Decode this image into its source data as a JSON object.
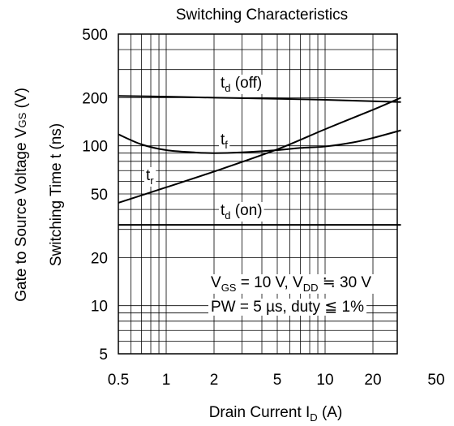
{
  "chart_data": {
    "type": "line",
    "title": "Switching Characteristics",
    "xlabel": {
      "main": "Drain Current I",
      "sub": "D",
      "unit": "(A)"
    },
    "ylabel_outer": {
      "main": "Gate to Source Voltage V",
      "sub": "GS",
      "unit": "(V)"
    },
    "ylabel_inner": "Switching Time t  (ns)",
    "x_scale": "log",
    "y_scale": "log",
    "xlim": [
      0.5,
      50
    ],
    "ylim": [
      5,
      500
    ],
    "x_ticks": [
      0.5,
      1,
      2,
      5,
      10,
      20,
      50
    ],
    "x_tick_labels": [
      "0.5",
      "1",
      "2",
      "5",
      "10",
      "20",
      "50"
    ],
    "y_ticks": [
      5,
      10,
      20,
      50,
      100,
      200,
      500
    ],
    "y_tick_labels": [
      "5",
      "10",
      "20",
      "50",
      "100",
      "200",
      "500"
    ],
    "grid": true,
    "series": [
      {
        "name": "td(off)",
        "label_main": "t",
        "label_sub": "d",
        "label_suffix": " (off)",
        "x": [
          0.5,
          1,
          2,
          5,
          10,
          20,
          30
        ],
        "y": [
          205,
          203,
          200,
          197,
          194,
          190,
          188
        ]
      },
      {
        "name": "tf",
        "label_main": "t",
        "label_sub": "f",
        "label_suffix": "",
        "x": [
          0.5,
          0.7,
          1,
          1.5,
          2,
          3,
          5,
          7,
          10,
          15,
          20,
          30
        ],
        "y": [
          118,
          102,
          94,
          91,
          90,
          91,
          94,
          97,
          99,
          105,
          112,
          125
        ]
      },
      {
        "name": "tr",
        "label_main": "t",
        "label_sub": "r",
        "label_suffix": "",
        "x": [
          0.5,
          1,
          2,
          5,
          10,
          20,
          30
        ],
        "y": [
          44,
          55,
          69,
          95,
          127,
          168,
          200
        ]
      },
      {
        "name": "td(on)",
        "label_main": "t",
        "label_sub": "d",
        "label_suffix": " (on)",
        "x": [
          0.5,
          1,
          5,
          10,
          30
        ],
        "y": [
          32,
          32,
          32,
          32,
          32
        ]
      }
    ],
    "conditions": [
      {
        "parts": [
          [
            "V",
            "n"
          ],
          [
            "GS",
            "s"
          ],
          [
            " = 10 V, V",
            "n"
          ],
          [
            "DD",
            "s"
          ],
          [
            " ≒ 30 V",
            "n"
          ]
        ]
      },
      {
        "parts": [
          [
            "PW = 5 µs, duty ≦ 1%",
            "n"
          ]
        ]
      }
    ]
  }
}
